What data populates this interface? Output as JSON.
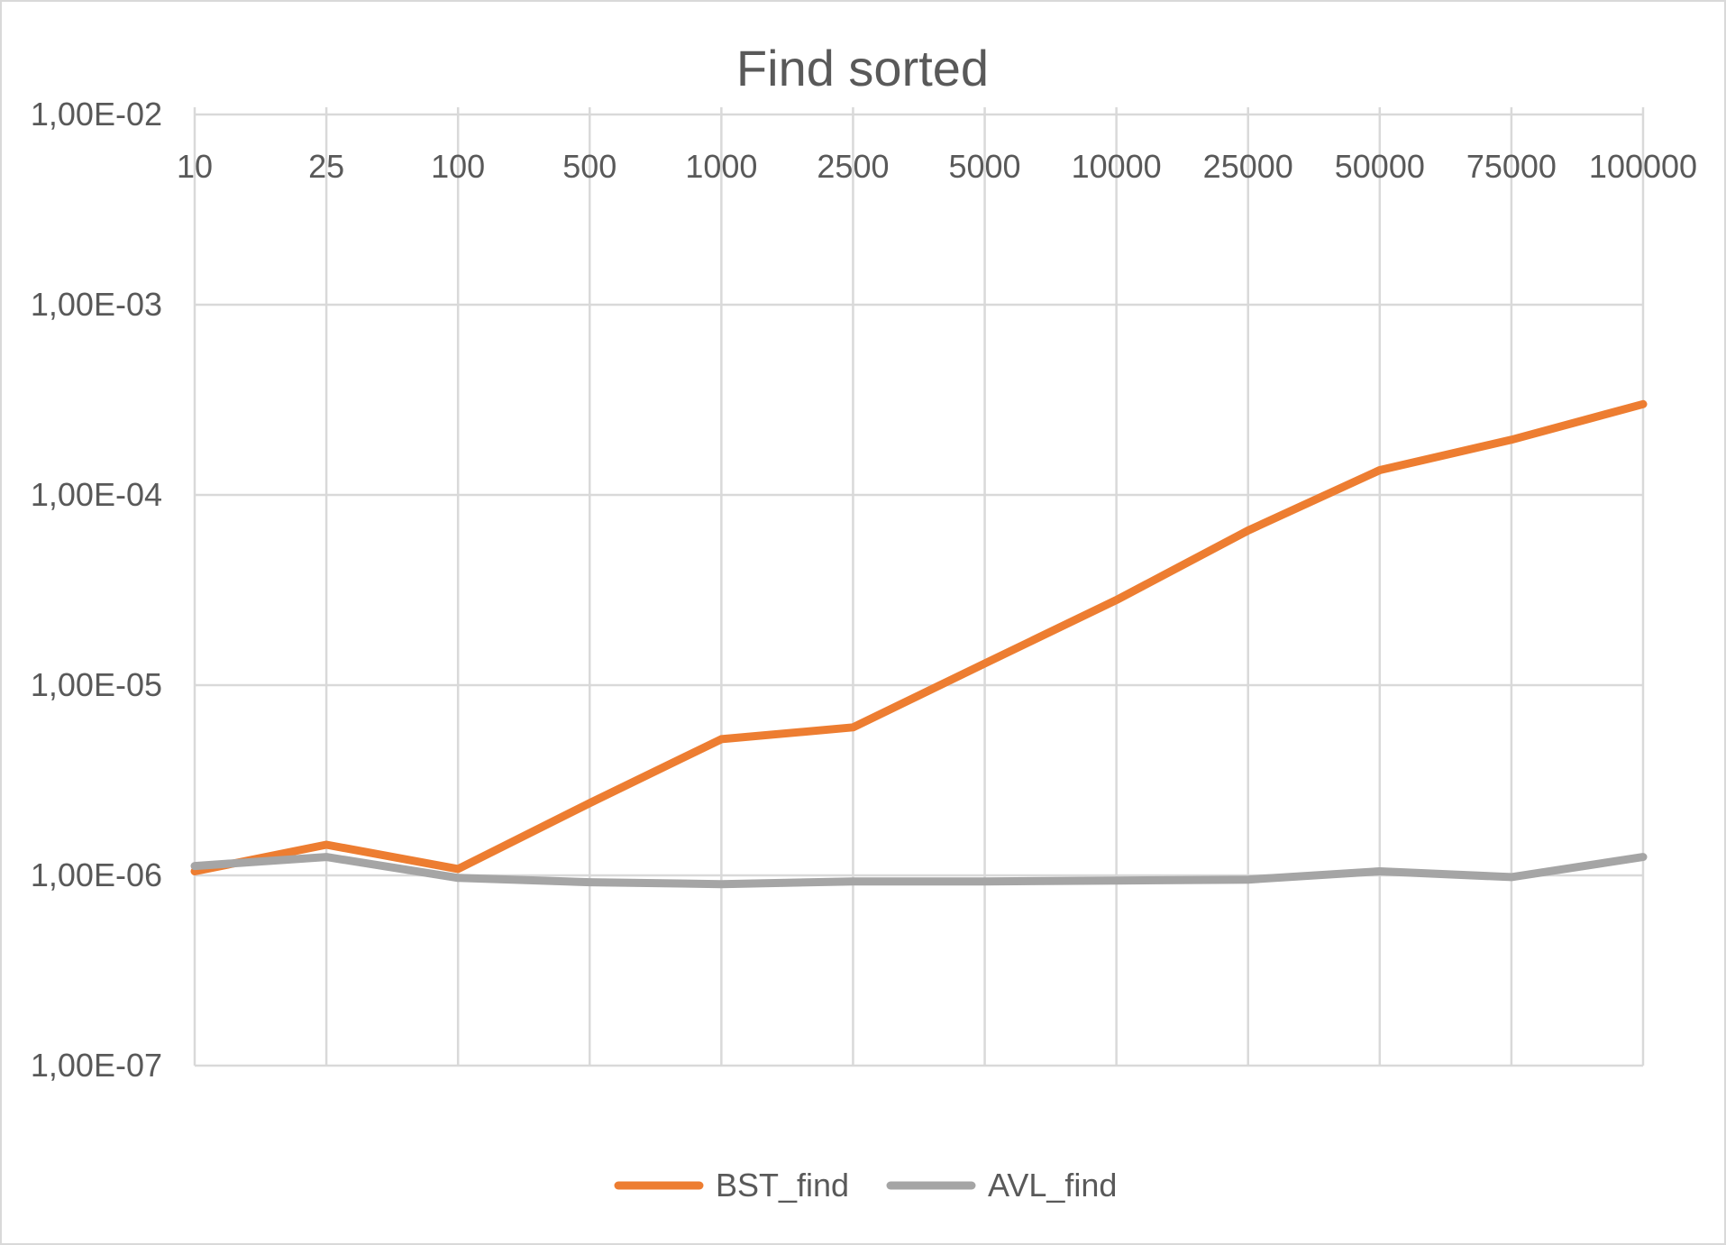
{
  "chart_data": {
    "type": "line",
    "title": "Find sorted",
    "categories": [
      "10",
      "25",
      "100",
      "500",
      "1000",
      "2500",
      "5000",
      "10000",
      "25000",
      "50000",
      "75000",
      "100000"
    ],
    "y_scale": "log",
    "ylim": [
      1e-07,
      0.01
    ],
    "y_tick_values": [
      0.01,
      0.001,
      0.0001,
      1e-05,
      1e-06,
      1e-07
    ],
    "y_tick_labels": [
      "1,00E-02",
      "1,00E-03",
      "1,00E-04",
      "1,00E-05",
      "1,00E-06",
      "1,00E-07"
    ],
    "x_axis_position": "top",
    "grid": true,
    "legend_position": "bottom",
    "series": [
      {
        "name": "BST_find",
        "color": "#ed7d31",
        "values": [
          1.05e-06,
          1.45e-06,
          1.08e-06,
          2.4e-06,
          5.2e-06,
          6e-06,
          1.3e-05,
          2.8e-05,
          6.5e-05,
          0.000135,
          0.000195,
          0.0003
        ]
      },
      {
        "name": "AVL_find",
        "color": "#a5a5a5",
        "values": [
          1.12e-06,
          1.25e-06,
          9.7e-07,
          9.2e-07,
          9e-07,
          9.3e-07,
          9.3e-07,
          9.4e-07,
          9.5e-07,
          1.05e-06,
          9.8e-07,
          1.25e-06
        ]
      }
    ]
  }
}
